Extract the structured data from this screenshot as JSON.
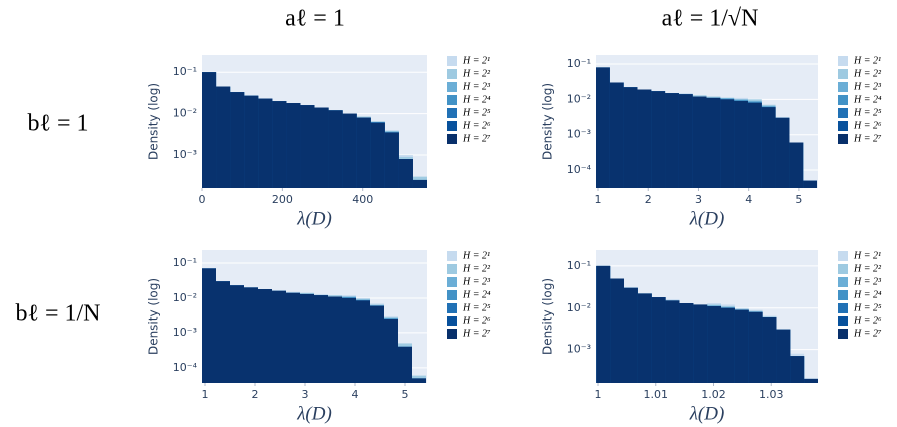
{
  "column_labels": [
    "aℓ = 1",
    "aℓ = 1/√N"
  ],
  "row_labels": [
    "bℓ = 1",
    "bℓ = 1/N"
  ],
  "chart_data": [
    {
      "type": "histogram",
      "xlabel": "λ(D)",
      "ylabel": "Density (log)",
      "log_y": true,
      "grid": true,
      "bins": [
        0,
        35,
        70,
        105,
        140,
        175,
        210,
        245,
        280,
        315,
        350,
        385,
        420,
        455,
        490,
        525,
        560
      ],
      "xlim": [
        0,
        560
      ],
      "xticks": [
        0,
        200,
        400
      ],
      "ylim": [
        0.00016,
        0.26
      ],
      "yticks": [
        {
          "value": 0.1,
          "label": "10⁻¹"
        },
        {
          "value": 0.01,
          "label": "10⁻²"
        },
        {
          "value": 0.001,
          "label": "10⁻³"
        }
      ],
      "series": [
        {
          "name": "H = 2¹",
          "color": "#c6dbef",
          "values": [
            0.1,
            0.045,
            0.033,
            0.027,
            0.023,
            0.02,
            0.018,
            0.016,
            0.014,
            0.012,
            0.01,
            0.0085,
            0.0065,
            0.004,
            0.001,
            0.0003
          ]
        },
        {
          "name": "H = 2²",
          "color": "#9ecae1",
          "values": [
            0.1,
            0.045,
            0.033,
            0.027,
            0.023,
            0.02,
            0.018,
            0.016,
            0.014,
            0.012,
            0.01,
            0.0085,
            0.0065,
            0.0038,
            0.0009,
            0.0003
          ]
        },
        {
          "name": "H = 2³",
          "color": "#6baed6",
          "values": [
            0.1,
            0.045,
            0.033,
            0.027,
            0.023,
            0.02,
            0.018,
            0.016,
            0.014,
            0.012,
            0.01,
            0.008,
            0.0062,
            0.0037,
            0.0008,
            0.00025
          ]
        },
        {
          "name": "H = 2⁴",
          "color": "#4292c6",
          "values": [
            0.1,
            0.045,
            0.033,
            0.027,
            0.023,
            0.02,
            0.018,
            0.016,
            0.014,
            0.012,
            0.01,
            0.008,
            0.0062,
            0.0036,
            0.0008,
            0.00025
          ]
        },
        {
          "name": "H = 2⁵",
          "color": "#2171b5",
          "values": [
            0.1,
            0.045,
            0.033,
            0.027,
            0.023,
            0.02,
            0.018,
            0.016,
            0.014,
            0.012,
            0.01,
            0.008,
            0.0062,
            0.0035,
            0.0008,
            0.00025
          ]
        },
        {
          "name": "H = 2⁶",
          "color": "#08519c",
          "values": [
            0.1,
            0.045,
            0.033,
            0.027,
            0.023,
            0.02,
            0.018,
            0.016,
            0.014,
            0.012,
            0.01,
            0.008,
            0.006,
            0.0035,
            0.0008,
            0.00025
          ]
        },
        {
          "name": "H = 2⁷",
          "color": "#08306b",
          "values": [
            0.1,
            0.045,
            0.033,
            0.027,
            0.023,
            0.02,
            0.018,
            0.016,
            0.014,
            0.012,
            0.01,
            0.008,
            0.006,
            0.0035,
            0.0008,
            0.00025
          ]
        }
      ]
    },
    {
      "type": "histogram",
      "xlabel": "λ(D)",
      "ylabel": "Density (log)",
      "log_y": true,
      "grid": true,
      "bins": [
        0.96,
        1.235,
        1.51,
        1.785,
        2.06,
        2.335,
        2.61,
        2.885,
        3.16,
        3.435,
        3.71,
        3.985,
        4.26,
        4.535,
        4.81,
        5.085,
        5.36
      ],
      "xlim": [
        0.96,
        5.38
      ],
      "xticks": [
        1,
        2,
        3,
        4,
        5
      ],
      "ylim": [
        3.1e-05,
        0.18
      ],
      "yticks": [
        {
          "value": 0.1,
          "label": "10⁻¹"
        },
        {
          "value": 0.01,
          "label": "10⁻²"
        },
        {
          "value": 0.001,
          "label": "10⁻³"
        },
        {
          "value": 0.0001,
          "label": "10⁻⁴"
        }
      ],
      "series": [
        {
          "name": "H = 2¹",
          "color": "#c6dbef",
          "values": [
            0.08,
            0.03,
            0.022,
            0.019,
            0.017,
            0.015,
            0.015,
            0.013,
            0.012,
            0.011,
            0.011,
            0.01,
            0.007,
            0.003,
            0.0006,
            5e-05
          ]
        },
        {
          "name": "H = 2²",
          "color": "#9ecae1",
          "values": [
            0.08,
            0.03,
            0.022,
            0.019,
            0.017,
            0.015,
            0.014,
            0.013,
            0.012,
            0.011,
            0.01,
            0.01,
            0.007,
            0.003,
            0.0006,
            5e-05
          ]
        },
        {
          "name": "H = 2³",
          "color": "#6baed6",
          "values": [
            0.08,
            0.03,
            0.022,
            0.019,
            0.017,
            0.015,
            0.014,
            0.012,
            0.011,
            0.011,
            0.01,
            0.009,
            0.0065,
            0.003,
            0.0006,
            5e-05
          ]
        },
        {
          "name": "H = 2⁴",
          "color": "#4292c6",
          "values": [
            0.08,
            0.03,
            0.022,
            0.019,
            0.017,
            0.015,
            0.014,
            0.012,
            0.011,
            0.01,
            0.0095,
            0.0085,
            0.0062,
            0.003,
            0.0006,
            5e-05
          ]
        },
        {
          "name": "H = 2⁵",
          "color": "#2171b5",
          "values": [
            0.08,
            0.03,
            0.022,
            0.019,
            0.017,
            0.015,
            0.014,
            0.012,
            0.011,
            0.01,
            0.009,
            0.008,
            0.006,
            0.003,
            0.0006,
            5e-05
          ]
        },
        {
          "name": "H = 2⁶",
          "color": "#08519c",
          "values": [
            0.08,
            0.03,
            0.022,
            0.019,
            0.017,
            0.015,
            0.014,
            0.012,
            0.011,
            0.01,
            0.009,
            0.008,
            0.006,
            0.003,
            0.0006,
            5e-05
          ]
        },
        {
          "name": "H = 2⁷",
          "color": "#08306b",
          "values": [
            0.08,
            0.03,
            0.022,
            0.019,
            0.017,
            0.015,
            0.014,
            0.012,
            0.011,
            0.01,
            0.009,
            0.008,
            0.006,
            0.003,
            0.0006,
            5e-05
          ]
        }
      ]
    },
    {
      "type": "histogram",
      "xlabel": "λ(D)",
      "ylabel": "Density (log)",
      "log_y": true,
      "grid": true,
      "bins": [
        0.94,
        1.22,
        1.5,
        1.78,
        2.06,
        2.34,
        2.62,
        2.9,
        3.18,
        3.46,
        3.74,
        4.02,
        4.3,
        4.58,
        4.86,
        5.14,
        5.42
      ],
      "xlim": [
        0.94,
        5.44
      ],
      "xticks": [
        1,
        2,
        3,
        4,
        5
      ],
      "ylim": [
        3.7e-05,
        0.235
      ],
      "yticks": [
        {
          "value": 0.1,
          "label": "10⁻¹"
        },
        {
          "value": 0.01,
          "label": "10⁻²"
        },
        {
          "value": 0.001,
          "label": "10⁻³"
        },
        {
          "value": 0.0001,
          "label": "10⁻⁴"
        }
      ],
      "series": [
        {
          "name": "H = 2¹",
          "color": "#c6dbef",
          "values": [
            0.07,
            0.03,
            0.023,
            0.02,
            0.018,
            0.016,
            0.015,
            0.014,
            0.013,
            0.012,
            0.012,
            0.01,
            0.007,
            0.003,
            0.0005,
            6e-05
          ]
        },
        {
          "name": "H = 2²",
          "color": "#9ecae1",
          "values": [
            0.07,
            0.03,
            0.023,
            0.02,
            0.018,
            0.016,
            0.014,
            0.014,
            0.012,
            0.012,
            0.011,
            0.0095,
            0.0065,
            0.0028,
            0.0005,
            6e-05
          ]
        },
        {
          "name": "H = 2³",
          "color": "#6baed6",
          "values": [
            0.07,
            0.03,
            0.023,
            0.02,
            0.018,
            0.016,
            0.014,
            0.013,
            0.012,
            0.011,
            0.011,
            0.009,
            0.0062,
            0.0027,
            0.0004,
            5e-05
          ]
        },
        {
          "name": "H = 2⁴",
          "color": "#4292c6",
          "values": [
            0.07,
            0.03,
            0.023,
            0.02,
            0.018,
            0.016,
            0.014,
            0.013,
            0.012,
            0.011,
            0.0105,
            0.0088,
            0.0061,
            0.0026,
            0.0004,
            5e-05
          ]
        },
        {
          "name": "H = 2⁵",
          "color": "#2171b5",
          "values": [
            0.07,
            0.03,
            0.023,
            0.02,
            0.018,
            0.016,
            0.014,
            0.013,
            0.012,
            0.011,
            0.01,
            0.0085,
            0.006,
            0.0025,
            0.0004,
            5e-05
          ]
        },
        {
          "name": "H = 2⁶",
          "color": "#08519c",
          "values": [
            0.07,
            0.03,
            0.023,
            0.02,
            0.018,
            0.016,
            0.014,
            0.013,
            0.012,
            0.011,
            0.01,
            0.0085,
            0.006,
            0.0025,
            0.0004,
            5e-05
          ]
        },
        {
          "name": "H = 2⁷",
          "color": "#08306b",
          "values": [
            0.07,
            0.03,
            0.023,
            0.02,
            0.018,
            0.016,
            0.014,
            0.013,
            0.012,
            0.011,
            0.01,
            0.0085,
            0.006,
            0.0025,
            0.0004,
            5e-05
          ]
        }
      ]
    },
    {
      "type": "histogram",
      "xlabel": "λ(D)",
      "ylabel": "Density (log)",
      "log_y": true,
      "grid": true,
      "bins": [
        0.9997,
        1.0021,
        1.0045,
        1.0069,
        1.0093,
        1.0117,
        1.0141,
        1.0165,
        1.0189,
        1.0213,
        1.0237,
        1.0261,
        1.0285,
        1.0309,
        1.0333,
        1.0357,
        1.0381
      ],
      "xlim": [
        0.99965,
        1.0381
      ],
      "xticks": [
        1,
        1.01,
        1.02,
        1.03
      ],
      "ylim": [
        0.00016,
        0.24
      ],
      "yticks": [
        {
          "value": 0.1,
          "label": "10⁻¹"
        },
        {
          "value": 0.01,
          "label": "10⁻²"
        },
        {
          "value": 0.001,
          "label": "10⁻³"
        }
      ],
      "series": [
        {
          "name": "H = 2¹",
          "color": "#c6dbef",
          "values": [
            0.1,
            0.05,
            0.03,
            0.022,
            0.018,
            0.016,
            0.013,
            0.012,
            0.013,
            0.012,
            0.01,
            0.009,
            0.0065,
            0.003,
            0.0008,
            0.0002
          ]
        },
        {
          "name": "H = 2²",
          "color": "#9ecae1",
          "values": [
            0.1,
            0.05,
            0.03,
            0.022,
            0.018,
            0.015,
            0.013,
            0.012,
            0.012,
            0.011,
            0.0095,
            0.0085,
            0.0062,
            0.003,
            0.0007,
            0.0002
          ]
        },
        {
          "name": "H = 2³",
          "color": "#6baed6",
          "values": [
            0.1,
            0.05,
            0.03,
            0.022,
            0.018,
            0.015,
            0.013,
            0.012,
            0.0115,
            0.0105,
            0.0092,
            0.0082,
            0.006,
            0.003,
            0.0007,
            0.0002
          ]
        },
        {
          "name": "H = 2⁴",
          "color": "#4292c6",
          "values": [
            0.1,
            0.05,
            0.03,
            0.022,
            0.018,
            0.015,
            0.013,
            0.012,
            0.011,
            0.01,
            0.009,
            0.008,
            0.006,
            0.003,
            0.0007,
            0.0002
          ]
        },
        {
          "name": "H = 2⁵",
          "color": "#2171b5",
          "values": [
            0.1,
            0.05,
            0.03,
            0.022,
            0.018,
            0.015,
            0.013,
            0.012,
            0.011,
            0.01,
            0.009,
            0.008,
            0.006,
            0.003,
            0.0007,
            0.0002
          ]
        },
        {
          "name": "H = 2⁶",
          "color": "#08519c",
          "values": [
            0.1,
            0.05,
            0.03,
            0.022,
            0.018,
            0.015,
            0.013,
            0.012,
            0.011,
            0.01,
            0.009,
            0.008,
            0.006,
            0.003,
            0.0007,
            0.0002
          ]
        },
        {
          "name": "H = 2⁷",
          "color": "#08306b",
          "values": [
            0.1,
            0.05,
            0.03,
            0.022,
            0.018,
            0.015,
            0.013,
            0.012,
            0.011,
            0.01,
            0.009,
            0.008,
            0.006,
            0.003,
            0.0007,
            0.0002
          ]
        }
      ]
    }
  ]
}
